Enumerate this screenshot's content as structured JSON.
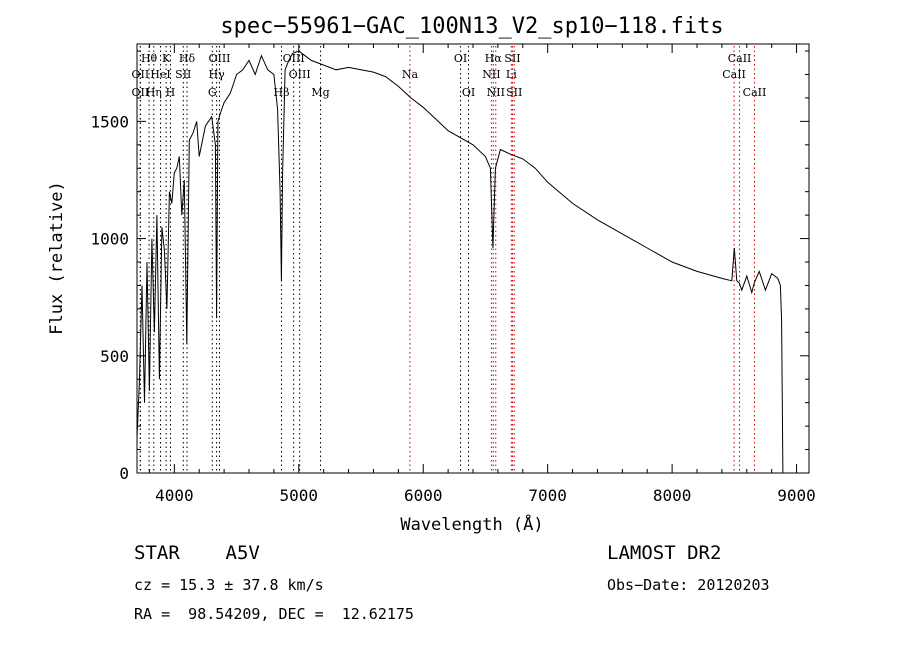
{
  "chart_data": {
    "type": "line",
    "title": "spec−55961−GAC_100N13_V2_sp10−118.fits",
    "xlabel": "Wavelength (Å)",
    "ylabel": "Flux (relative)",
    "xlim": [
      3700,
      9100
    ],
    "ylim": [
      0,
      1830
    ],
    "xticks": [
      4000,
      5000,
      6000,
      7000,
      8000,
      9000
    ],
    "yticks": [
      0,
      500,
      1000,
      1500
    ],
    "grid": false,
    "series": [
      {
        "x": [
          3700,
          3720,
          3740,
          3760,
          3780,
          3800,
          3820,
          3840,
          3860,
          3880,
          3900,
          3920,
          3940,
          3960,
          3980,
          4000,
          4020,
          4040,
          4060,
          4080,
          4100,
          4120,
          4150,
          4180,
          4200,
          4250,
          4300,
          4330,
          4340,
          4350,
          4380,
          4400,
          4450,
          4500,
          4550,
          4600,
          4650,
          4700,
          4750,
          4800,
          4830,
          4850,
          4860,
          4870,
          4890,
          4920,
          4950,
          5000,
          5100,
          5200,
          5300,
          5400,
          5500,
          5600,
          5700,
          5800,
          5900,
          6000,
          6100,
          6200,
          6300,
          6400,
          6500,
          6540,
          6560,
          6580,
          6620,
          6700,
          6800,
          6900,
          7000,
          7200,
          7400,
          7600,
          7800,
          8000,
          8200,
          8400,
          8480,
          8500,
          8520,
          8540,
          8560,
          8600,
          8640,
          8660,
          8700,
          8750,
          8800,
          8850,
          8870,
          8880,
          8890
        ],
        "y": [
          150,
          400,
          800,
          300,
          900,
          350,
          1000,
          600,
          1100,
          400,
          1050,
          950,
          700,
          1200,
          1150,
          1280,
          1300,
          1350,
          1100,
          1250,
          550,
          1420,
          1450,
          1500,
          1350,
          1480,
          1520,
          1400,
          660,
          1500,
          1550,
          1580,
          1620,
          1700,
          1720,
          1760,
          1700,
          1780,
          1720,
          1700,
          1550,
          1200,
          820,
          1280,
          1720,
          1760,
          1790,
          1800,
          1760,
          1740,
          1720,
          1730,
          1720,
          1710,
          1690,
          1650,
          1600,
          1560,
          1510,
          1460,
          1430,
          1400,
          1350,
          1300,
          960,
          1300,
          1380,
          1360,
          1340,
          1300,
          1240,
          1150,
          1080,
          1020,
          960,
          900,
          860,
          830,
          820,
          960,
          820,
          810,
          780,
          840,
          770,
          810,
          860,
          780,
          850,
          830,
          800,
          650,
          0
        ]
      }
    ],
    "lines": {
      "row1": [
        {
          "label": "Hθ",
          "x": 3797,
          "color": "#000000"
        },
        {
          "label": "K",
          "x": 3934,
          "color": "#000000"
        },
        {
          "label": "Hδ",
          "x": 4102,
          "color": "#000000"
        },
        {
          "label": "OIII",
          "x": 4363,
          "color": "#000000"
        },
        {
          "label": "OIII",
          "x": 4959,
          "color": "#000000"
        },
        {
          "label": "OI",
          "x": 6300,
          "color": "#000000"
        },
        {
          "label": "Hα",
          "x": 6563,
          "color": "#cc0000"
        },
        {
          "label": "SII",
          "x": 6717,
          "color": "#cc0000"
        },
        {
          "label": "CaII",
          "x": 8542,
          "color": "#cc0000"
        }
      ],
      "row2": [
        {
          "label": "OII",
          "x": 3727,
          "color": "#000000"
        },
        {
          "label": "HeI",
          "x": 3889,
          "color": "#000000"
        },
        {
          "label": "SII",
          "x": 4072,
          "color": "#000000"
        },
        {
          "label": "Hγ",
          "x": 4340,
          "color": "#000000"
        },
        {
          "label": "OIII",
          "x": 5007,
          "color": "#000000"
        },
        {
          "label": "Na",
          "x": 5893,
          "color": "#cc0000"
        },
        {
          "label": "NII",
          "x": 6548,
          "color": "#cc0000"
        },
        {
          "label": "Li",
          "x": 6708,
          "color": "#cc0000"
        },
        {
          "label": "CaII",
          "x": 8498,
          "color": "#cc0000"
        }
      ],
      "row3": [
        {
          "label": "OII",
          "x": 3727,
          "color": "#000000"
        },
        {
          "label": "Hη",
          "x": 3835,
          "color": "#000000"
        },
        {
          "label": "H",
          "x": 3969,
          "color": "#000000"
        },
        {
          "label": "G",
          "x": 4305,
          "color": "#000000"
        },
        {
          "label": "Hβ",
          "x": 4861,
          "color": "#000000"
        },
        {
          "label": "Mg",
          "x": 5175,
          "color": "#000000"
        },
        {
          "label": "OI",
          "x": 6364,
          "color": "#000000"
        },
        {
          "label": "NII",
          "x": 6583,
          "color": "#cc0000"
        },
        {
          "label": "SII",
          "x": 6731,
          "color": "#cc0000"
        },
        {
          "label": "CaII",
          "x": 8662,
          "color": "#cc0000"
        }
      ]
    },
    "colors": {
      "line_black": "#000000",
      "line_red": "#cc0000"
    }
  },
  "info": {
    "class": "STAR    A5V",
    "survey": "LAMOST DR2",
    "cz": "cz = 15.3 ± 37.8 km/s",
    "obsdate": "Obs−Date: 20120203",
    "radec": "RA =  98.54209, DEC =  12.62175"
  }
}
